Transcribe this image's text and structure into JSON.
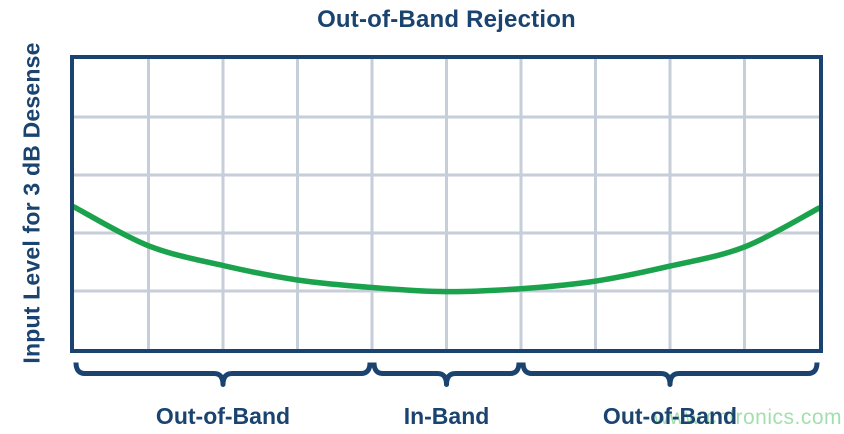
{
  "page": {
    "watermark": "www.cntronics.com"
  },
  "chart_data": {
    "type": "line",
    "title": "Out-of-Band Rejection",
    "xlabel": "",
    "ylabel": "Input Level for 3 dB Desense",
    "axes": {
      "x_ticks": [],
      "y_ticks": [],
      "grid": true,
      "grid_cols": 10,
      "grid_rows": 5,
      "note": "axes are unlabeled / qualitative; values below are in grid-cell units"
    },
    "series": [
      {
        "name": "input-level-for-3dB-desense",
        "color": "#1aa34c",
        "x": [
          0,
          1,
          2,
          3,
          4,
          5,
          6,
          7,
          8,
          9,
          10
        ],
        "y": [
          2.45,
          1.78,
          1.44,
          1.19,
          1.06,
          0.99,
          1.04,
          1.17,
          1.43,
          1.76,
          2.43
        ],
        "shape": "bathtub curve: high at band edges, flat minimum in-band"
      }
    ],
    "regions": [
      {
        "label": "Out-of-Band",
        "from": 0,
        "to": 4
      },
      {
        "label": "In-Band",
        "from": 4,
        "to": 6
      },
      {
        "label": "Out-of-Band",
        "from": 6,
        "to": 10
      }
    ],
    "legend": null,
    "colors": {
      "navy": "#1a436f",
      "curve_green": "#1aa34c",
      "grid": "#c5ced9",
      "watermark_green": "#a3dfad"
    }
  }
}
